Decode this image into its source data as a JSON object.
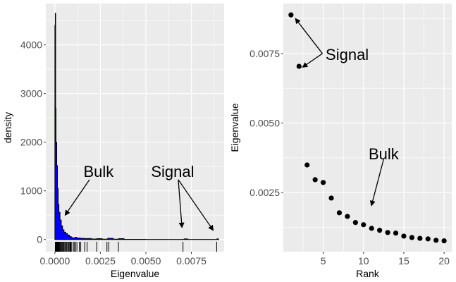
{
  "chart_data": [
    {
      "type": "area",
      "xlabel": "Eigenvalue",
      "ylabel": "density",
      "xlim": [
        -0.0005,
        0.0093
      ],
      "ylim": [
        -250,
        4850
      ],
      "xticks": [
        0.0,
        0.0025,
        0.005,
        0.0075
      ],
      "xtick_labels": [
        "0.0000",
        "0.0025",
        "0.0050",
        "0.0075"
      ],
      "yticks": [
        0,
        1000,
        2000,
        3000,
        4000
      ],
      "ytick_labels": [
        "0",
        "1000",
        "2000",
        "3000",
        "4000"
      ],
      "grid": true,
      "fill_color": "#0000FF",
      "density": {
        "x": [
          0,
          2e-05,
          4e-05,
          6e-05,
          0.0001,
          0.00014,
          0.00018,
          0.00022,
          0.00028,
          0.00035,
          0.00042,
          0.0005,
          0.0006,
          0.0007,
          0.0008,
          0.0009,
          0.001,
          0.0011,
          0.0012,
          0.0014,
          0.0016,
          0.0018,
          0.002,
          0.0023,
          0.0026,
          0.0029,
          0.0032,
          0.0035,
          0.0038,
          0.005,
          0.0069,
          0.0071,
          0.0073,
          0.0087,
          0.0089,
          0.009
        ],
        "y": [
          4400,
          4650,
          2700,
          2000,
          1520,
          1050,
          720,
          560,
          400,
          280,
          200,
          150,
          120,
          90,
          60,
          40,
          30,
          45,
          30,
          25,
          20,
          22,
          10,
          18,
          8,
          25,
          8,
          18,
          4,
          2,
          2,
          12,
          2,
          2,
          12,
          0
        ]
      },
      "rug": [
        2e-05,
        4e-05,
        6e-05,
        8e-05,
        0.0001,
        0.00012,
        0.00014,
        0.00016,
        0.00018,
        0.0002,
        0.00023,
        0.00026,
        0.0003,
        0.00034,
        0.00038,
        0.00042,
        0.00046,
        0.0005,
        0.00055,
        0.0006,
        0.00065,
        0.0007,
        0.00076,
        0.00078,
        0.00083,
        0.00085,
        0.00088,
        0.00093,
        0.00104,
        0.00106,
        0.00114,
        0.00121,
        0.00134,
        0.00142,
        0.00164,
        0.00177,
        0.0023,
        0.00286,
        0.00296,
        0.00349,
        0.00704,
        0.00889
      ],
      "annotations": [
        {
          "text": "Bulk",
          "x": 0.0024,
          "y": 1400,
          "arrows": [
            {
              "from": [
                0.0019,
                1230
              ],
              "to": [
                0.00058,
                510
              ]
            }
          ]
        },
        {
          "text": "Signal",
          "x": 0.00647,
          "y": 1400,
          "arrows": [
            {
              "from": [
                0.00678,
                1230
              ],
              "to": [
                0.00698,
                260
              ]
            },
            {
              "from": [
                0.00678,
                1230
              ],
              "to": [
                0.00868,
                200
              ]
            }
          ]
        }
      ]
    },
    {
      "type": "scatter",
      "xlabel": "Rank",
      "ylabel": "Eigenvalue",
      "xlim": [
        0.05,
        20.95
      ],
      "ylim": [
        0.00037,
        0.0093
      ],
      "xticks": [
        5,
        10,
        15,
        20
      ],
      "xtick_labels": [
        "5",
        "10",
        "15",
        "20"
      ],
      "yticks": [
        0.0025,
        0.005,
        0.0075
      ],
      "ytick_labels": [
        "0.0025",
        "0.0050",
        "0.0075"
      ],
      "grid": true,
      "x": [
        1,
        2,
        3,
        4,
        5,
        6,
        7,
        8,
        9,
        10,
        11,
        12,
        13,
        14,
        15,
        16,
        17,
        18,
        19,
        20
      ],
      "y": [
        0.00889,
        0.00704,
        0.00349,
        0.00296,
        0.00286,
        0.0023,
        0.00177,
        0.00164,
        0.00142,
        0.00134,
        0.00121,
        0.00114,
        0.00106,
        0.00104,
        0.00093,
        0.00088,
        0.00085,
        0.00083,
        0.00078,
        0.00076
      ],
      "annotations": [
        {
          "text": "Signal",
          "x": 5.3,
          "y": 0.00747,
          "arrows": [
            {
              "from": [
                4.9,
                0.0075
              ],
              "to": [
                1.6,
                0.00874
              ]
            },
            {
              "from": [
                4.9,
                0.0075
              ],
              "to": [
                2.5,
                0.00702
              ]
            }
          ]
        },
        {
          "text": "Bulk",
          "x": 12.5,
          "y": 0.0039,
          "arrows": [
            {
              "from": [
                12.5,
                0.0037
              ],
              "to": [
                11.0,
                0.00205
              ]
            }
          ]
        }
      ]
    }
  ]
}
